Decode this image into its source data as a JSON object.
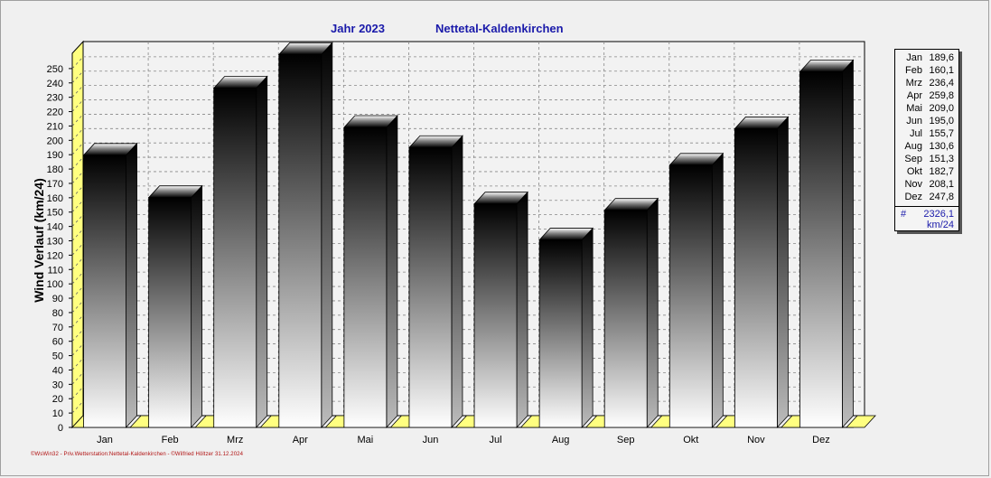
{
  "header": {
    "year_label": "Jahr  2023",
    "station": "Nettetal-Kaldenkirchen"
  },
  "chart_data": {
    "type": "bar",
    "title": "Jahr  2023",
    "subtitle": "Nettetal-Kaldenkirchen",
    "ylabel": "Wind Verlauf  (km/24)",
    "xlabel": "",
    "categories": [
      "Jan",
      "Feb",
      "Mrz",
      "Apr",
      "Mai",
      "Jun",
      "Jul",
      "Aug",
      "Sep",
      "Okt",
      "Nov",
      "Dez"
    ],
    "values": [
      189.6,
      160.1,
      236.4,
      259.8,
      209.0,
      195.0,
      155.7,
      130.6,
      151.3,
      182.7,
      208.1,
      247.8
    ],
    "ylim": [
      0,
      260
    ],
    "yticks": [
      0,
      10,
      20,
      30,
      40,
      50,
      60,
      70,
      80,
      90,
      100,
      110,
      120,
      130,
      140,
      150,
      160,
      170,
      180,
      190,
      200,
      210,
      220,
      230,
      240,
      250
    ],
    "grid": true,
    "style": "3d",
    "bar_color_top": "#000000",
    "bar_color_bottom": "#ffffff",
    "floor_color": "#ffff80"
  },
  "legend": {
    "rows": [
      {
        "month": "Jan",
        "value": "189,6"
      },
      {
        "month": "Feb",
        "value": "160,1"
      },
      {
        "month": "Mrz",
        "value": "236,4"
      },
      {
        "month": "Apr",
        "value": "259,8"
      },
      {
        "month": "Mai",
        "value": "209,0"
      },
      {
        "month": "Jun",
        "value": "195,0"
      },
      {
        "month": "Jul",
        "value": "155,7"
      },
      {
        "month": "Aug",
        "value": "130,6"
      },
      {
        "month": "Sep",
        "value": "151,3"
      },
      {
        "month": "Okt",
        "value": "182,7"
      },
      {
        "month": "Nov",
        "value": "208,1"
      },
      {
        "month": "Dez",
        "value": "247,8"
      }
    ],
    "total_symbol": "#",
    "total": "2326,1",
    "unit": "km/24"
  },
  "footer": "©WsWin32 - Priv.Wetterstation:Nettetal-Kaldenkirchen - ©Wilfried Höltzer 31.12.2024",
  "colors": {
    "title": "#1a1aaa",
    "footer": "#b01010",
    "background": "#f0f0f0"
  }
}
